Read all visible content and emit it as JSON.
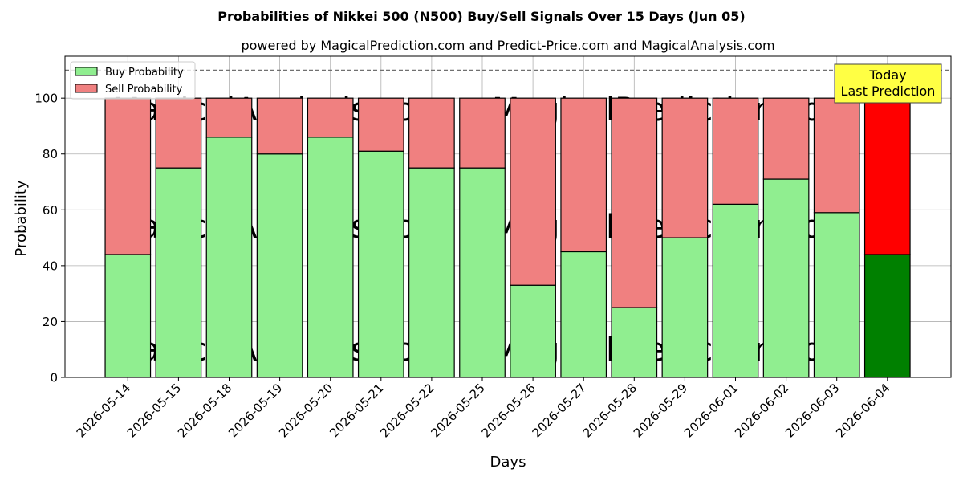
{
  "chart_data": {
    "type": "bar",
    "stacked": true,
    "title": "Probabilities of Nikkei 500 (N500) Buy/Sell Signals Over 15 Days (Jun 05)",
    "subtitle": "powered by MagicalPrediction.com and Predict-Price.com and MagicalAnalysis.com",
    "xlabel": "Days",
    "ylabel": "Probability",
    "ylim": [
      0,
      115
    ],
    "yticks": [
      0,
      20,
      40,
      60,
      80,
      100
    ],
    "reference_line": 110,
    "grid": true,
    "legend_position": "top-left",
    "categories": [
      "2026-05-14",
      "2026-05-15",
      "2026-05-18",
      "2026-05-19",
      "2026-05-20",
      "2026-05-21",
      "2026-05-22",
      "2026-05-25",
      "2026-05-26",
      "2026-05-27",
      "2026-05-28",
      "2026-05-29",
      "2026-06-01",
      "2026-06-02",
      "2026-06-03",
      "2026-06-04"
    ],
    "series": [
      {
        "name": "Buy Probability",
        "values": [
          44,
          75,
          86,
          80,
          86,
          81,
          75,
          75,
          33,
          45,
          25,
          50,
          62,
          71,
          59,
          44
        ]
      },
      {
        "name": "Sell Probability",
        "values": [
          56,
          25,
          14,
          20,
          14,
          19,
          25,
          25,
          67,
          55,
          75,
          50,
          38,
          29,
          41,
          56
        ]
      }
    ],
    "colors": {
      "buy": "#90ee90",
      "sell": "#f08080",
      "buy_highlight": "#008000",
      "sell_highlight": "#ff0000",
      "annotation_bg": "#ffff44"
    },
    "annotation": {
      "lines": [
        "Today",
        "Last Prediction"
      ],
      "category": "2026-06-04"
    },
    "watermarks": [
      "MagicalAnalysis.com",
      "MagicalPrediction.com"
    ]
  }
}
